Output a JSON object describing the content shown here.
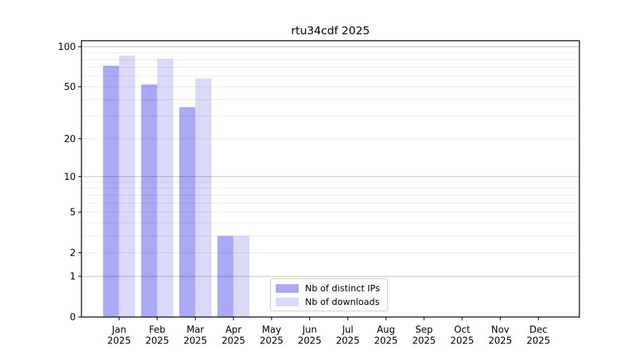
{
  "chart_data": {
    "type": "bar",
    "title": "rtu34cdf 2025",
    "categories": [
      "Jan",
      "Feb",
      "Mar",
      "Apr",
      "May",
      "Jun",
      "Jul",
      "Aug",
      "Sep",
      "Oct",
      "Nov",
      "Dec"
    ],
    "x_tick_year": "2025",
    "series": [
      {
        "name": "Nb of distinct IPs",
        "color": "#a9a9f6",
        "values": [
          72,
          52,
          35,
          3,
          0,
          0,
          0,
          0,
          0,
          0,
          0,
          0
        ]
      },
      {
        "name": "Nb of downloads",
        "color": "#dadaf8",
        "values": [
          86,
          81,
          58,
          3,
          0,
          0,
          0,
          0,
          0,
          0,
          0,
          0
        ]
      }
    ],
    "yscale": "log1p",
    "yticks": [
      0,
      1,
      2,
      5,
      10,
      20,
      50,
      100
    ],
    "ylim": [
      0,
      111
    ],
    "xlabel": "",
    "ylabel": "",
    "grid": true,
    "grid_major_values": [
      1,
      10,
      100
    ],
    "grid_minor_values": [
      2,
      3,
      4,
      5,
      6,
      7,
      8,
      9,
      20,
      30,
      40,
      50,
      60,
      70,
      80,
      90
    ],
    "legend_position": "lower center inside"
  },
  "appearance": {
    "background": "#ffffff",
    "bar_color_distinct_ips": "#a9a9f6",
    "bar_color_downloads": "#dadaf8",
    "spine_color": "#000000",
    "tick_text_color": "#000000",
    "grid_minor_color": "rgba(0,0,0,0.085)",
    "grid_major_color": "rgba(0,0,0,0.25)",
    "legend_border_color": "#cccccc"
  }
}
